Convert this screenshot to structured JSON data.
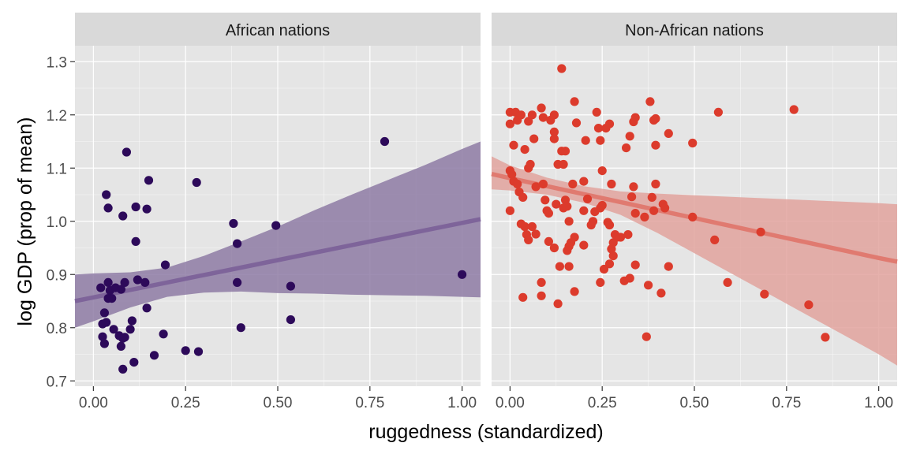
{
  "chart_data": {
    "type": "scatter",
    "xlabel": "ruggedness (standardized)",
    "ylabel": "log GDP (prop of mean)",
    "xlim": [
      -0.05,
      1.05
    ],
    "ylim": [
      0.69,
      1.33
    ],
    "x_ticks": [
      0,
      0.25,
      0.5,
      0.75,
      1.0
    ],
    "x_tick_labels": [
      "0.00",
      "0.25",
      "0.50",
      "0.75",
      "1.00"
    ],
    "y_ticks": [
      0.7,
      0.8,
      0.9,
      1.0,
      1.1,
      1.2,
      1.3
    ],
    "y_tick_labels": [
      "0.7",
      "0.8",
      "0.9",
      "1.0",
      "1.1",
      "1.2",
      "1.3"
    ],
    "grid": true,
    "panel_background": "#e5e5e5",
    "strip_background": "#d9d9d9",
    "panels": [
      {
        "label": "African nations",
        "point_color": "#2d0a5a",
        "band_color": "#8e7ba5",
        "line_color": "#7e649a",
        "fit": {
          "x": [
            -0.05,
            0.0,
            0.1,
            0.2,
            0.3,
            0.4,
            0.5,
            0.6,
            0.7,
            0.8,
            0.9,
            1.0,
            1.05
          ],
          "mean": [
            0.85,
            0.857,
            0.871,
            0.885,
            0.899,
            0.913,
            0.927,
            0.941,
            0.955,
            0.969,
            0.983,
            0.997,
            1.004
          ],
          "lower": [
            0.8,
            0.812,
            0.838,
            0.858,
            0.866,
            0.868,
            0.865,
            0.864,
            0.862,
            0.861,
            0.86,
            0.858,
            0.857
          ],
          "upper": [
            0.9,
            0.902,
            0.904,
            0.913,
            0.935,
            0.962,
            0.99,
            1.021,
            1.05,
            1.078,
            1.106,
            1.136,
            1.15
          ]
        },
        "points": [
          {
            "x": 0.02,
            "y": 0.875
          },
          {
            "x": 0.035,
            "y": 1.05
          },
          {
            "x": 0.04,
            "y": 1.025
          },
          {
            "x": 0.04,
            "y": 0.885
          },
          {
            "x": 0.045,
            "y": 0.87
          },
          {
            "x": 0.05,
            "y": 0.855
          },
          {
            "x": 0.04,
            "y": 0.855
          },
          {
            "x": 0.06,
            "y": 0.875
          },
          {
            "x": 0.075,
            "y": 0.872
          },
          {
            "x": 0.085,
            "y": 0.885
          },
          {
            "x": 0.03,
            "y": 0.828
          },
          {
            "x": 0.025,
            "y": 0.807
          },
          {
            "x": 0.035,
            "y": 0.81
          },
          {
            "x": 0.055,
            "y": 0.797
          },
          {
            "x": 0.07,
            "y": 0.785
          },
          {
            "x": 0.08,
            "y": 0.78
          },
          {
            "x": 0.085,
            "y": 0.782
          },
          {
            "x": 0.025,
            "y": 0.783
          },
          {
            "x": 0.03,
            "y": 0.77
          },
          {
            "x": 0.075,
            "y": 0.765
          },
          {
            "x": 0.1,
            "y": 0.797
          },
          {
            "x": 0.105,
            "y": 0.813
          },
          {
            "x": 0.08,
            "y": 0.722
          },
          {
            "x": 0.11,
            "y": 0.735
          },
          {
            "x": 0.09,
            "y": 1.13
          },
          {
            "x": 0.08,
            "y": 1.01
          },
          {
            "x": 0.115,
            "y": 1.027
          },
          {
            "x": 0.115,
            "y": 0.962
          },
          {
            "x": 0.12,
            "y": 0.89
          },
          {
            "x": 0.14,
            "y": 0.885
          },
          {
            "x": 0.145,
            "y": 1.023
          },
          {
            "x": 0.15,
            "y": 1.077
          },
          {
            "x": 0.145,
            "y": 0.837
          },
          {
            "x": 0.165,
            "y": 0.748
          },
          {
            "x": 0.19,
            "y": 0.788
          },
          {
            "x": 0.195,
            "y": 0.918
          },
          {
            "x": 0.25,
            "y": 0.757
          },
          {
            "x": 0.28,
            "y": 1.073
          },
          {
            "x": 0.285,
            "y": 0.755
          },
          {
            "x": 0.38,
            "y": 0.996
          },
          {
            "x": 0.39,
            "y": 0.958
          },
          {
            "x": 0.39,
            "y": 0.885
          },
          {
            "x": 0.4,
            "y": 0.8
          },
          {
            "x": 0.495,
            "y": 0.992
          },
          {
            "x": 0.535,
            "y": 0.878
          },
          {
            "x": 0.535,
            "y": 0.815
          },
          {
            "x": 0.79,
            "y": 1.15
          },
          {
            "x": 1.0,
            "y": 0.9
          }
        ]
      },
      {
        "label": "Non-African nations",
        "point_color": "#dc3b2c",
        "band_color": "#e2a39d",
        "line_color": "#e07a70",
        "fit": {
          "x": [
            -0.05,
            0.0,
            0.1,
            0.2,
            0.3,
            0.4,
            0.5,
            0.6,
            0.7,
            0.8,
            0.9,
            1.0,
            1.05
          ],
          "mean": [
            1.089,
            1.081,
            1.066,
            1.051,
            1.036,
            1.021,
            1.006,
            0.991,
            0.976,
            0.961,
            0.946,
            0.931,
            0.924
          ],
          "lower": [
            1.06,
            1.058,
            1.05,
            1.035,
            1.012,
            0.978,
            0.94,
            0.902,
            0.864,
            0.826,
            0.788,
            0.75,
            0.729
          ],
          "upper": [
            1.122,
            1.105,
            1.082,
            1.066,
            1.056,
            1.052,
            1.049,
            1.046,
            1.043,
            1.04,
            1.037,
            1.034,
            1.032
          ]
        },
        "points": [
          {
            "x": 0.0,
            "y": 1.205
          },
          {
            "x": 0.0,
            "y": 1.183
          },
          {
            "x": 0.01,
            "y": 1.143
          },
          {
            "x": 0.015,
            "y": 1.205
          },
          {
            "x": 0.02,
            "y": 1.19
          },
          {
            "x": 0.03,
            "y": 1.2
          },
          {
            "x": 0.05,
            "y": 1.188
          },
          {
            "x": 0.06,
            "y": 1.2
          },
          {
            "x": 0.085,
            "y": 1.213
          },
          {
            "x": 0.09,
            "y": 1.195
          },
          {
            "x": 0.11,
            "y": 1.19
          },
          {
            "x": 0.12,
            "y": 1.2
          },
          {
            "x": 0.0,
            "y": 1.095
          },
          {
            "x": 0.005,
            "y": 1.088
          },
          {
            "x": 0.01,
            "y": 1.075
          },
          {
            "x": 0.02,
            "y": 1.07
          },
          {
            "x": 0.025,
            "y": 1.055
          },
          {
            "x": 0.035,
            "y": 1.045
          },
          {
            "x": 0.04,
            "y": 1.135
          },
          {
            "x": 0.05,
            "y": 1.1
          },
          {
            "x": 0.055,
            "y": 1.107
          },
          {
            "x": 0.065,
            "y": 1.155
          },
          {
            "x": 0.07,
            "y": 1.065
          },
          {
            "x": 0.09,
            "y": 1.07
          },
          {
            "x": 0.0,
            "y": 1.02
          },
          {
            "x": 0.03,
            "y": 0.995
          },
          {
            "x": 0.04,
            "y": 0.99
          },
          {
            "x": 0.045,
            "y": 0.975
          },
          {
            "x": 0.05,
            "y": 0.965
          },
          {
            "x": 0.06,
            "y": 0.99
          },
          {
            "x": 0.07,
            "y": 0.976
          },
          {
            "x": 0.095,
            "y": 1.04
          },
          {
            "x": 0.1,
            "y": 1.02
          },
          {
            "x": 0.105,
            "y": 1.015
          },
          {
            "x": 0.105,
            "y": 0.962
          },
          {
            "x": 0.12,
            "y": 0.95
          },
          {
            "x": 0.125,
            "y": 1.032
          },
          {
            "x": 0.12,
            "y": 1.168
          },
          {
            "x": 0.12,
            "y": 1.155
          },
          {
            "x": 0.13,
            "y": 1.107
          },
          {
            "x": 0.14,
            "y": 1.132
          },
          {
            "x": 0.145,
            "y": 1.107
          },
          {
            "x": 0.15,
            "y": 1.132
          },
          {
            "x": 0.14,
            "y": 1.287
          },
          {
            "x": 0.145,
            "y": 1.025
          },
          {
            "x": 0.15,
            "y": 1.04
          },
          {
            "x": 0.155,
            "y": 1.028
          },
          {
            "x": 0.16,
            "y": 1.0
          },
          {
            "x": 0.165,
            "y": 0.96
          },
          {
            "x": 0.155,
            "y": 0.945
          },
          {
            "x": 0.16,
            "y": 0.953
          },
          {
            "x": 0.135,
            "y": 0.915
          },
          {
            "x": 0.16,
            "y": 0.915
          },
          {
            "x": 0.17,
            "y": 1.07
          },
          {
            "x": 0.175,
            "y": 1.225
          },
          {
            "x": 0.18,
            "y": 1.185
          },
          {
            "x": 0.175,
            "y": 0.97
          },
          {
            "x": 0.175,
            "y": 0.868
          },
          {
            "x": 0.13,
            "y": 0.845
          },
          {
            "x": 0.085,
            "y": 0.885
          },
          {
            "x": 0.085,
            "y": 0.86
          },
          {
            "x": 0.035,
            "y": 0.857
          },
          {
            "x": 0.2,
            "y": 1.075
          },
          {
            "x": 0.2,
            "y": 1.02
          },
          {
            "x": 0.2,
            "y": 0.955
          },
          {
            "x": 0.205,
            "y": 1.152
          },
          {
            "x": 0.21,
            "y": 1.042
          },
          {
            "x": 0.22,
            "y": 0.993
          },
          {
            "x": 0.225,
            "y": 1.0
          },
          {
            "x": 0.23,
            "y": 1.018
          },
          {
            "x": 0.24,
            "y": 1.175
          },
          {
            "x": 0.235,
            "y": 1.205
          },
          {
            "x": 0.245,
            "y": 1.152
          },
          {
            "x": 0.245,
            "y": 1.025
          },
          {
            "x": 0.245,
            "y": 0.885
          },
          {
            "x": 0.25,
            "y": 1.095
          },
          {
            "x": 0.25,
            "y": 1.03
          },
          {
            "x": 0.255,
            "y": 0.91
          },
          {
            "x": 0.26,
            "y": 1.175
          },
          {
            "x": 0.265,
            "y": 0.998
          },
          {
            "x": 0.27,
            "y": 1.183
          },
          {
            "x": 0.27,
            "y": 0.993
          },
          {
            "x": 0.27,
            "y": 0.92
          },
          {
            "x": 0.275,
            "y": 1.07
          },
          {
            "x": 0.275,
            "y": 0.948
          },
          {
            "x": 0.28,
            "y": 0.96
          },
          {
            "x": 0.285,
            "y": 0.975
          },
          {
            "x": 0.28,
            "y": 0.935
          },
          {
            "x": 0.29,
            "y": 0.97
          },
          {
            "x": 0.3,
            "y": 0.97
          },
          {
            "x": 0.31,
            "y": 0.888
          },
          {
            "x": 0.315,
            "y": 1.138
          },
          {
            "x": 0.32,
            "y": 0.975
          },
          {
            "x": 0.325,
            "y": 0.893
          },
          {
            "x": 0.325,
            "y": 1.16
          },
          {
            "x": 0.33,
            "y": 1.046
          },
          {
            "x": 0.335,
            "y": 1.065
          },
          {
            "x": 0.335,
            "y": 1.187
          },
          {
            "x": 0.34,
            "y": 1.195
          },
          {
            "x": 0.34,
            "y": 1.015
          },
          {
            "x": 0.34,
            "y": 0.918
          },
          {
            "x": 0.365,
            "y": 1.008
          },
          {
            "x": 0.37,
            "y": 0.783
          },
          {
            "x": 0.375,
            "y": 0.88
          },
          {
            "x": 0.38,
            "y": 1.225
          },
          {
            "x": 0.385,
            "y": 1.045
          },
          {
            "x": 0.39,
            "y": 1.02
          },
          {
            "x": 0.39,
            "y": 1.19
          },
          {
            "x": 0.395,
            "y": 1.193
          },
          {
            "x": 0.395,
            "y": 1.143
          },
          {
            "x": 0.395,
            "y": 1.07
          },
          {
            "x": 0.41,
            "y": 0.865
          },
          {
            "x": 0.415,
            "y": 1.032
          },
          {
            "x": 0.42,
            "y": 1.025
          },
          {
            "x": 0.43,
            "y": 1.165
          },
          {
            "x": 0.43,
            "y": 0.915
          },
          {
            "x": 0.495,
            "y": 1.147
          },
          {
            "x": 0.495,
            "y": 1.008
          },
          {
            "x": 0.555,
            "y": 0.965
          },
          {
            "x": 0.565,
            "y": 1.205
          },
          {
            "x": 0.59,
            "y": 0.885
          },
          {
            "x": 0.68,
            "y": 0.98
          },
          {
            "x": 0.69,
            "y": 0.863
          },
          {
            "x": 0.77,
            "y": 1.21
          },
          {
            "x": 0.81,
            "y": 0.843
          },
          {
            "x": 0.855,
            "y": 0.782
          }
        ]
      }
    ]
  }
}
